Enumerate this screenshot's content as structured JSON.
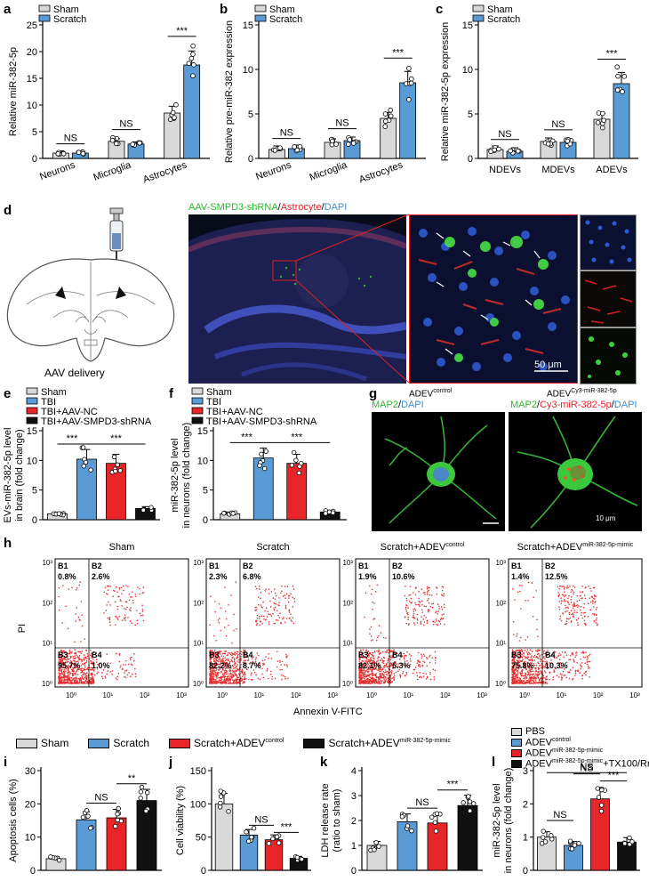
{
  "panel_labels": {
    "a": "a",
    "b": "b",
    "c": "c",
    "d": "d",
    "e": "e",
    "f": "f",
    "g": "g",
    "h": "h",
    "i": "i",
    "j": "j",
    "k": "k",
    "l": "l"
  },
  "colors": {
    "sham": "#d9d9d9",
    "scratch": "#5b9bd5",
    "red": "#e8262a",
    "black": "#111111"
  },
  "panel_d": {
    "caption": "AAV delivery",
    "stain_green": "AAV-SMPD3-shRNA",
    "stain_red": "Astrocyte",
    "stain_blue": "DAPI",
    "scale_bar": "50 μm"
  },
  "panel_g": {
    "left_title_base": "ADEV",
    "left_title_sup": "control",
    "left_stain_green": "MAP2",
    "left_stain_blue": "DAPI",
    "right_title_base": "ADEV",
    "right_title_sup": "Cy3-miR-382-5p",
    "right_stain_green": "MAP2",
    "right_stain_red": "Cy3-miR-382-5p",
    "right_stain_blue": "DAPI",
    "scale_bar": "10 μm"
  },
  "panel_h": {
    "y_label": "PI",
    "x_label": "Annexin V-FITC",
    "plots": [
      {
        "title": "Sham",
        "title_sup": "",
        "B1": "0.8%",
        "B2": "2.6%",
        "B3": "95.7%",
        "B4": "1.0%"
      },
      {
        "title": "Scratch",
        "title_sup": "",
        "B1": "2.3%",
        "B2": "6.8%",
        "B3": "82.2%",
        "B4": "8.7%"
      },
      {
        "title": "Scratch+ADEV",
        "title_sup": "control",
        "B1": "1.9%",
        "B2": "10.6%",
        "B3": "82.1%",
        "B4": "5.3%"
      },
      {
        "title": "Scratch+ADEV",
        "title_sup": "miR-382-5p-mimic",
        "B1": "1.4%",
        "B2": "12.5%",
        "B3": "75.8%",
        "B4": "10.3%"
      }
    ],
    "quadrants": [
      "B1",
      "B2",
      "B3",
      "B4"
    ],
    "ticks_y": [
      "10³",
      "10²",
      "10¹",
      "10⁰"
    ],
    "ticks_x": [
      "10⁰",
      "10¹",
      "10²",
      "10³"
    ]
  },
  "legend_ijk": [
    {
      "label": "Sham",
      "sup": "",
      "color": "#d9d9d9"
    },
    {
      "label": "Scratch",
      "sup": "",
      "color": "#5b9bd5"
    },
    {
      "label": "Scratch+ADEV",
      "sup": "control",
      "color": "#e8262a"
    },
    {
      "label": "Scratch+ADEV",
      "sup": "miR-382-5p-mimic",
      "color": "#111111"
    }
  ],
  "legend_l": [
    {
      "label": "PBS",
      "sup": "",
      "tail": "",
      "color": "#d9d9d9"
    },
    {
      "label": "ADEV",
      "sup": "control",
      "tail": "",
      "color": "#5b9bd5"
    },
    {
      "label": "ADEV",
      "sup": "miR-382-5p-mimic",
      "tail": "",
      "color": "#e8262a"
    },
    {
      "label": "ADEV",
      "sup": "miR-382-5p-mimic",
      "tail": "+TX100/Rnase",
      "color": "#111111"
    }
  ],
  "chart_data": [
    {
      "id": "a",
      "type": "bar",
      "ylabel": "Relative miR-382-5p",
      "ylim": [
        0,
        25
      ],
      "yticks": [
        0,
        5,
        10,
        15,
        20,
        25
      ],
      "categories": [
        "Neurons",
        "Microglia",
        "Astrocytes"
      ],
      "series": [
        {
          "name": "Sham",
          "values": [
            1.0,
            3.2,
            8.5
          ]
        },
        {
          "name": "Scratch",
          "values": [
            1.0,
            2.7,
            17.5
          ]
        }
      ],
      "sig": [
        "NS",
        "NS",
        "***"
      ],
      "legend": [
        "Sham",
        "Scratch"
      ]
    },
    {
      "id": "b",
      "type": "bar",
      "ylabel": "Relative pre-miR-382 expression",
      "ylim": [
        0,
        15
      ],
      "yticks": [
        0,
        5,
        10,
        15
      ],
      "categories": [
        "Neurons",
        "Microglia",
        "Astrocytes"
      ],
      "series": [
        {
          "name": "Sham",
          "values": [
            1.0,
            1.8,
            4.5
          ]
        },
        {
          "name": "Scratch",
          "values": [
            1.1,
            2.0,
            8.5
          ]
        }
      ],
      "sig": [
        "NS",
        "NS",
        "***"
      ],
      "legend": [
        "Sham",
        "Scratch"
      ]
    },
    {
      "id": "c",
      "type": "bar",
      "ylabel": "Relative miR-382-5p expression",
      "ylim": [
        0,
        15
      ],
      "yticks": [
        0,
        5,
        10,
        15
      ],
      "categories": [
        "NDEVs",
        "MDEVs",
        "ADEVs"
      ],
      "series": [
        {
          "name": "Sham",
          "values": [
            1.0,
            1.9,
            4.4
          ]
        },
        {
          "name": "Scratch",
          "values": [
            0.8,
            1.8,
            8.4
          ]
        }
      ],
      "sig": [
        "NS",
        "NS",
        "***"
      ],
      "legend": [
        "Sham",
        "Scratch"
      ]
    },
    {
      "id": "e",
      "type": "bar",
      "ylabel": "EVs-miR-382-5p level in brain (fold change)",
      "ylim": [
        0,
        15
      ],
      "yticks": [
        0,
        5,
        10,
        15
      ],
      "categories": [
        "Sham",
        "TBI",
        "TBI+AAV-NC",
        "TBI+AAV-SMPD3-shRNA"
      ],
      "values": [
        1.0,
        10.2,
        9.5,
        1.9
      ],
      "sig": [
        "***",
        "***"
      ],
      "legend": [
        "Sham",
        "TBI",
        "TBI+AAV-NC",
        "TBI+AAV-SMPD3-shRNA"
      ]
    },
    {
      "id": "f",
      "type": "bar",
      "ylabel": "miR-382-5p level in neurons (fold change)",
      "ylim": [
        0,
        15
      ],
      "yticks": [
        0,
        5,
        10,
        15
      ],
      "categories": [
        "Sham",
        "TBI",
        "TBI+AAV-NC",
        "TBI+AAV-SMPD3-shRNA"
      ],
      "values": [
        1.0,
        10.4,
        9.5,
        1.3
      ],
      "sig": [
        "***",
        "***"
      ],
      "legend": [
        "Sham",
        "TBI",
        "TBI+AAV-NC",
        "TBI+AAV-SMPD3-shRNA"
      ]
    },
    {
      "id": "i",
      "type": "bar",
      "ylabel": "Apoptosis cells (%)",
      "ylim": [
        0,
        30
      ],
      "yticks": [
        0,
        10,
        20,
        30
      ],
      "values": [
        3.5,
        15.2,
        15.8,
        21.0
      ],
      "sig": [
        "NS",
        "**"
      ]
    },
    {
      "id": "j",
      "type": "bar",
      "ylabel": "Cell viability (%)",
      "ylim": [
        0,
        150
      ],
      "yticks": [
        0,
        50,
        100,
        150
      ],
      "values": [
        100,
        53,
        46,
        18
      ],
      "sig": [
        "NS",
        "***"
      ]
    },
    {
      "id": "k",
      "type": "bar",
      "ylabel": "LDH release rate (ratio to sham)",
      "ylim": [
        0,
        4
      ],
      "yticks": [
        0,
        1,
        2,
        3,
        4
      ],
      "values": [
        1.0,
        1.95,
        1.9,
        2.6
      ],
      "sig": [
        "NS",
        "***"
      ]
    },
    {
      "id": "l",
      "type": "bar",
      "ylabel": "miR-382-5p level in neurons (fold change)",
      "ylim": [
        0,
        3
      ],
      "yticks": [
        0,
        1,
        2,
        3
      ],
      "values": [
        1.0,
        0.75,
        2.15,
        0.85
      ],
      "sig": [
        "NS",
        "NS",
        "***",
        "NS"
      ]
    }
  ]
}
